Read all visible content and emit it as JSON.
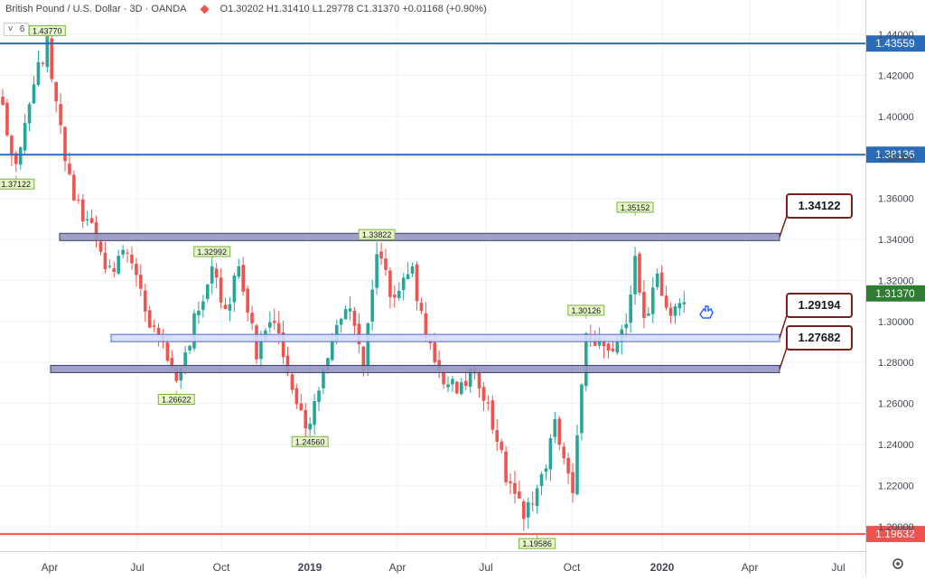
{
  "header": {
    "symbol": "British Pound / U.S. Dollar · 3D · OANDA",
    "ohlc": "O1.30202  H1.31410  L1.29778  C1.31370  +0.01168 (+0.90%)",
    "indicator_count": "6",
    "colors": {
      "up": "#26a69a",
      "down": "#ef5350",
      "accent": "#2962ff"
    }
  },
  "chart_data": {
    "type": "candlestick",
    "title": "British Pound / U.S. Dollar · 3D · OANDA",
    "xlabel": "",
    "ylabel": "",
    "ylim": [
      1.188,
      1.448
    ],
    "grid": true,
    "x_ticks": [
      "Apr",
      "Jul",
      "Oct",
      "2019",
      "Apr",
      "Jul",
      "Oct",
      "2020",
      "Apr",
      "Jul"
    ],
    "x_tick_bold": [
      false,
      false,
      false,
      true,
      false,
      false,
      false,
      true,
      false,
      false
    ],
    "y_ticks": [
      "1.44000",
      "1.42000",
      "1.40000",
      "1.38000",
      "1.36000",
      "1.34000",
      "1.32000",
      "1.30000",
      "1.28000",
      "1.26000",
      "1.24000",
      "1.22000",
      "1.20000"
    ],
    "y_tick_values": [
      1.44,
      1.42,
      1.4,
      1.38,
      1.36,
      1.34,
      1.32,
      1.3,
      1.28,
      1.26,
      1.24,
      1.22,
      1.2
    ],
    "horizontal_lines": [
      {
        "label": "1.43559",
        "value": 1.43559,
        "color": "#2a6cb8"
      },
      {
        "label": "1.38136",
        "value": 1.38136,
        "color": "#2a6cb8"
      },
      {
        "label": "1.19632",
        "value": 1.19632,
        "color": "#ef5350"
      }
    ],
    "last_price": {
      "label": "1.31370",
      "value": 1.3137,
      "color": "#2e7d32"
    },
    "zones": [
      {
        "label": "1.34122",
        "value": 1.34122,
        "from_index": 0,
        "to_index": 174,
        "fill": "#9597c4",
        "border": "#3c3f63"
      },
      {
        "label": "1.29194",
        "value": 1.29194,
        "from_index": 25,
        "to_index": 174,
        "fill": "#d4dcff",
        "border": "#5467c9"
      },
      {
        "label": "1.27682",
        "value": 1.27682,
        "from_index": 0,
        "to_index": 174,
        "fill": "#9597c4",
        "border": "#3c3f63"
      }
    ],
    "swing_labels": [
      {
        "text": "1.43770",
        "value": 1.4377,
        "index": 10,
        "side": "above"
      },
      {
        "text": "1.37122",
        "value": 1.37122,
        "index": 3,
        "side": "below"
      },
      {
        "text": "1.32992",
        "value": 1.32992,
        "index": 47,
        "side": "above"
      },
      {
        "text": "1.26622",
        "value": 1.26622,
        "index": 39,
        "side": "below"
      },
      {
        "text": "1.33822",
        "value": 1.33822,
        "index": 84,
        "side": "above"
      },
      {
        "text": "1.24560",
        "value": 1.2456,
        "index": 69,
        "side": "below"
      },
      {
        "text": "1.30126",
        "value": 1.30126,
        "index": 131,
        "side": "above"
      },
      {
        "text": "1.19586",
        "value": 1.19586,
        "index": 120,
        "side": "below"
      },
      {
        "text": "1.35152",
        "value": 1.35152,
        "index": 142,
        "side": "above"
      }
    ],
    "anchors": [
      [
        0,
        1.405
      ],
      [
        3,
        1.375
      ],
      [
        7,
        1.415
      ],
      [
        10,
        1.437
      ],
      [
        12,
        1.405
      ],
      [
        16,
        1.36
      ],
      [
        20,
        1.345
      ],
      [
        24,
        1.325
      ],
      [
        28,
        1.335
      ],
      [
        32,
        1.305
      ],
      [
        36,
        1.29
      ],
      [
        39,
        1.268
      ],
      [
        43,
        1.3
      ],
      [
        47,
        1.328
      ],
      [
        50,
        1.305
      ],
      [
        53,
        1.325
      ],
      [
        57,
        1.285
      ],
      [
        61,
        1.3
      ],
      [
        65,
        1.265
      ],
      [
        69,
        1.248
      ],
      [
        73,
        1.285
      ],
      [
        77,
        1.31
      ],
      [
        81,
        1.28
      ],
      [
        84,
        1.335
      ],
      [
        88,
        1.31
      ],
      [
        92,
        1.325
      ],
      [
        95,
        1.29
      ],
      [
        98,
        1.275
      ],
      [
        102,
        1.265
      ],
      [
        105,
        1.275
      ],
      [
        109,
        1.258
      ],
      [
        113,
        1.225
      ],
      [
        117,
        1.205
      ],
      [
        120,
        1.215
      ],
      [
        124,
        1.25
      ],
      [
        128,
        1.22
      ],
      [
        131,
        1.295
      ],
      [
        134,
        1.288
      ],
      [
        137,
        1.285
      ],
      [
        140,
        1.3
      ],
      [
        142,
        1.335
      ],
      [
        144,
        1.3
      ],
      [
        147,
        1.32
      ],
      [
        150,
        1.305
      ],
      [
        153,
        1.31
      ]
    ],
    "candle_count": 154,
    "seed": 20201
  }
}
